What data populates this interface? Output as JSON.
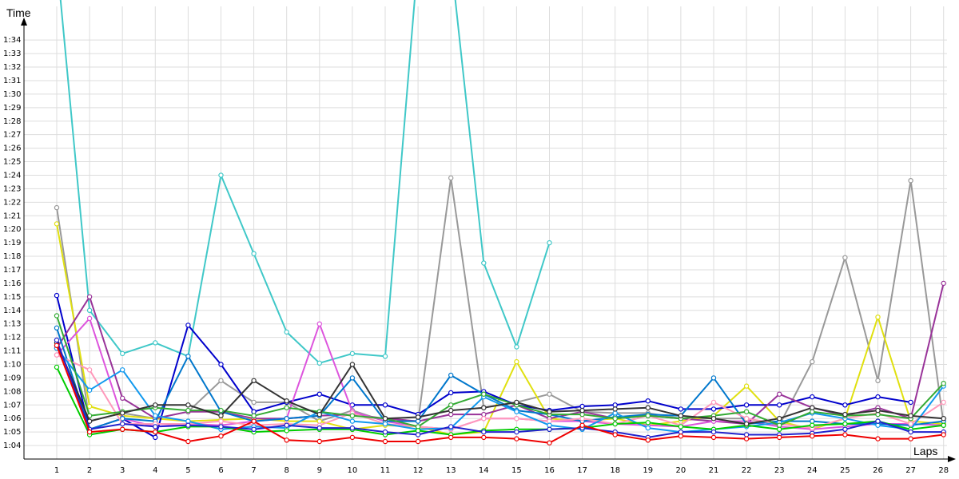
{
  "chart_data": {
    "type": "line",
    "title": "",
    "xlabel": "Laps",
    "ylabel": "Time",
    "grid": true,
    "x": [
      1,
      2,
      3,
      4,
      5,
      6,
      7,
      8,
      9,
      10,
      11,
      12,
      13,
      14,
      15,
      16,
      17,
      18,
      19,
      20,
      21,
      22,
      23,
      24,
      25,
      26,
      27,
      28
    ],
    "y_ticks": [
      "1:04",
      "1:05",
      "1:06",
      "1:07",
      "1:08",
      "1:09",
      "1:10",
      "1:11",
      "1:12",
      "1:13",
      "1:14",
      "1:15",
      "1:16",
      "1:17",
      "1:18",
      "1:19",
      "1:20",
      "1:21",
      "1:22",
      "1:23",
      "1:24",
      "1:25",
      "1:26",
      "1:27",
      "1:28",
      "1:29",
      "1:30",
      "1:31",
      "1:32",
      "1:33",
      "1:34"
    ],
    "ylim": [
      "1:03",
      "1:35"
    ],
    "series": [
      {
        "color": "#40c8c8",
        "values": [
          "1:40",
          "1:14.0",
          "1:10.8",
          "1:11.6",
          "1:10.6",
          "1:24.0",
          "1:18.2",
          "1:12.4",
          "1:10.1",
          "1:10.8",
          "1:10.6",
          "1:40",
          "1:40",
          "1:17.5",
          "1:11.3",
          "1:19.0",
          null,
          null,
          null,
          null,
          null,
          null,
          null,
          null,
          null,
          null,
          null,
          null
        ]
      },
      {
        "color": "#999999",
        "values": [
          "1:21.6",
          "1:05.8",
          "1:06.4",
          "1:06.0",
          "1:06.5",
          "1:08.8",
          "1:07.2",
          "1:07.2",
          "1:05.8",
          "1:06.6",
          "1:05.8",
          "1:05.8",
          "1:23.8",
          "1:06.8",
          "1:07.2",
          "1:07.8",
          "1:06.5",
          "1:06.4",
          "1:06.4",
          "1:06.0",
          "1:06.0",
          "1:06.0",
          "1:05.5",
          "1:10.2",
          "1:17.9",
          "1:08.8",
          "1:23.6",
          "1:05.6"
        ]
      },
      {
        "color": "#e0e010",
        "values": [
          "1:20.4",
          "1:06.9",
          "1:06.2",
          "1:06.0",
          "1:05.8",
          "1:05.9",
          "1:06.0",
          "1:05.8",
          "1:05.8",
          "1:05.2",
          "1:05.5",
          "1:05.4",
          "1:04.8",
          "1:05.0",
          "1:10.2",
          "1:06.0",
          "1:05.8",
          "1:06.0",
          "1:05.5",
          "1:05.8",
          "1:06.2",
          "1:08.4",
          "1:05.8",
          "1:05.2",
          "1:06.0",
          "1:13.5",
          "1:05.8",
          "1:05.6"
        ]
      },
      {
        "color": "#0000cc",
        "values": [
          "1:15.1",
          "1:05.2",
          "1:06.0",
          "1:04.6",
          "1:12.9",
          "1:10.0",
          "1:06.5",
          "1:07.2",
          "1:07.8",
          "1:07.0",
          "1:07.0",
          "1:06.3",
          "1:07.9",
          "1:08.0",
          "1:07.0",
          "1:06.6",
          "1:06.9",
          "1:07.0",
          "1:07.3",
          "1:06.7",
          "1:06.7",
          "1:07.0",
          "1:07.0",
          "1:07.6",
          "1:07.0",
          "1:07.6",
          "1:07.2",
          null
        ]
      },
      {
        "color": "#993399",
        "values": [
          "1:11.2",
          "1:15.0",
          "1:07.5",
          "1:06.0",
          "1:06.5",
          "1:06.5",
          "1:06.0",
          "1:06.0",
          "1:06.2",
          "1:06.3",
          "1:06.0",
          "1:05.8",
          "1:06.3",
          "1:06.3",
          "1:07.0",
          "1:06.0",
          "1:06.5",
          "1:06.0",
          "1:06.2",
          "1:06.0",
          "1:05.8",
          "1:05.6",
          "1:07.8",
          "1:06.8",
          "1:06.2",
          "1:06.8",
          "1:06.0",
          "1:16.0"
        ]
      },
      {
        "color": "#dd55dd",
        "values": [
          "1:10.7",
          "1:13.4",
          "1:06.0",
          "1:05.4",
          "1:05.6",
          "1:05.5",
          "1:05.8",
          "1:06.0",
          "1:13.0",
          "1:06.5",
          "1:05.8",
          "1:05.4",
          "1:05.2",
          "1:06.0",
          "1:06.0",
          "1:05.8",
          "1:05.8",
          "1:05.6",
          "1:05.5",
          "1:05.4",
          "1:05.8",
          "1:05.8",
          "1:05.4",
          "1:05.2",
          "1:05.4",
          "1:05.6",
          "1:05.6",
          "1:05.5"
        ]
      },
      {
        "color": "#0077cc",
        "values": [
          "1:12.7",
          "1:05.2",
          "1:06.0",
          "1:05.8",
          "1:10.6",
          "1:06.5",
          "1:05.8",
          "1:06.0",
          "1:06.2",
          "1:09.0",
          "1:05.8",
          "1:05.8",
          "1:09.2",
          "1:07.8",
          "1:06.6",
          "1:06.3",
          "1:05.8",
          "1:06.1",
          "1:06.3",
          "1:06.2",
          "1:09.0",
          "1:05.6",
          "1:05.8",
          "1:05.8",
          "1:05.6",
          "1:05.6",
          "1:05.5",
          "1:05.8"
        ]
      },
      {
        "color": "#ff99bb",
        "values": [
          "1:10.7",
          "1:09.6",
          "1:05.6",
          "1:05.6",
          "1:05.6",
          "1:05.8",
          "1:05.5",
          "1:05.6",
          "1:05.5",
          "1:06.4",
          "1:05.6",
          "1:05.4",
          "1:05.2",
          "1:06.0",
          "1:06.0",
          "1:05.8",
          "1:06.0",
          "1:05.6",
          "1:06.2",
          "1:05.5",
          "1:07.2",
          "1:06.0",
          "1:05.6",
          "1:05.3",
          "1:06.0",
          "1:06.4",
          "1:05.6",
          "1:07.2"
        ]
      },
      {
        "color": "#1199ee",
        "values": [
          "1:11.2",
          "1:08.1",
          "1:09.6",
          "1:06.2",
          "1:05.8",
          "1:05.2",
          "1:05.4",
          "1:05.3",
          "1:06.5",
          "1:05.8",
          "1:05.6",
          "1:05.2",
          "1:05.3",
          "1:07.6",
          "1:06.5",
          "1:05.5",
          "1:05.2",
          "1:06.4",
          "1:05.3",
          "1:05.0",
          "1:05.2",
          "1:05.4",
          "1:05.7",
          "1:06.4",
          "1:06.0",
          "1:05.5",
          "1:05.2",
          "1:08.4"
        ]
      },
      {
        "color": "#33aa33",
        "values": [
          "1:13.6",
          "1:06.2",
          "1:06.5",
          "1:06.8",
          "1:06.6",
          "1:06.6",
          "1:06.2",
          "1:06.8",
          "1:06.5",
          "1:06.2",
          "1:06.0",
          "1:05.4",
          "1:07.0",
          "1:07.8",
          "1:07.0",
          "1:06.3",
          "1:06.3",
          "1:06.0",
          "1:06.2",
          "1:06.0",
          "1:06.2",
          "1:06.5",
          "1:05.5",
          "1:06.5",
          "1:06.2",
          "1:06.3",
          "1:06.0",
          "1:08.6"
        ]
      },
      {
        "color": "#00cc00",
        "values": [
          "1:09.8",
          "1:04.8",
          "1:05.2",
          "1:05.0",
          "1:05.4",
          "1:05.4",
          "1:05.0",
          "1:05.1",
          "1:05.2",
          "1:05.2",
          "1:04.8",
          "1:05.1",
          "1:04.8",
          "1:05.1",
          "1:05.2",
          "1:05.2",
          "1:05.3",
          "1:05.6",
          "1:05.7",
          "1:05.4",
          "1:05.2",
          "1:05.5",
          "1:05.2",
          "1:05.5",
          "1:05.6",
          "1:05.8",
          "1:05.2",
          "1:05.5"
        ]
      },
      {
        "color": "#333333",
        "values": [
          "1:11.6",
          "1:05.8",
          "1:06.4",
          "1:07.0",
          "1:07.0",
          "1:06.2",
          "1:08.8",
          "1:07.3",
          "1:06.3",
          "1:10.0",
          "1:06.0",
          "1:06.1",
          "1:06.6",
          "1:06.8",
          "1:07.2",
          "1:06.5",
          "1:06.6",
          "1:06.7",
          "1:06.8",
          "1:06.2",
          "1:06.0",
          "1:05.6",
          "1:06.0",
          "1:06.8",
          "1:06.3",
          "1:06.6",
          "1:06.2",
          "1:06.0"
        ]
      },
      {
        "color": "#2222cc",
        "values": [
          "1:11.8",
          "1:05.2",
          "1:05.6",
          "1:05.4",
          "1:05.5",
          "1:05.4",
          "1:05.2",
          "1:05.5",
          "1:05.3",
          "1:05.3",
          "1:05.0",
          "1:04.8",
          "1:05.4",
          "1:05.0",
          "1:05.0",
          "1:05.2",
          "1:05.3",
          "1:05.0",
          "1:04.6",
          "1:05.0",
          "1:05.0",
          "1:04.8",
          "1:04.8",
          "1:04.9",
          "1:05.2",
          "1:05.8",
          "1:05.0",
          "1:05.0"
        ]
      },
      {
        "color": "#ee0000",
        "values": [
          "1:11.4",
          "1:05.0",
          "1:05.2",
          "1:05.0",
          "1:04.3",
          "1:04.7",
          "1:05.8",
          "1:04.4",
          "1:04.3",
          "1:04.6",
          "1:04.3",
          "1:04.3",
          "1:04.6",
          "1:04.6",
          "1:04.5",
          "1:04.2",
          "1:05.5",
          "1:04.8",
          "1:04.4",
          "1:04.7",
          "1:04.6",
          "1:04.5",
          "1:04.6",
          "1:04.7",
          "1:04.8",
          "1:04.5",
          "1:04.5",
          "1:04.8"
        ]
      }
    ]
  }
}
